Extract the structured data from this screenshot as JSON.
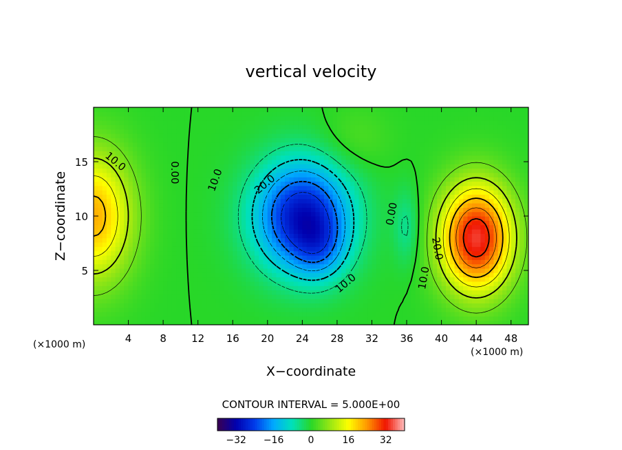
{
  "chart_data": {
    "type": "heatmap",
    "title": "vertical velocity",
    "xlabel": "X−coordinate",
    "ylabel": "Z−coordinate",
    "x_unit": "(×1000 m)",
    "y_unit": "(×1000 m)",
    "xlim": [
      0,
      50
    ],
    "ylim": [
      0,
      20
    ],
    "x_ticks": [
      "4",
      "8",
      "12",
      "16",
      "20",
      "24",
      "28",
      "32",
      "36",
      "40",
      "44",
      "48"
    ],
    "x_tick_values": [
      4,
      8,
      12,
      16,
      20,
      24,
      28,
      32,
      36,
      40,
      44,
      48
    ],
    "y_ticks": [
      "5",
      "10",
      "15"
    ],
    "y_tick_values": [
      5,
      10,
      15
    ],
    "contour_interval_text": "CONTOUR INTERVAL = 5.000E+00",
    "contour_labels": [
      {
        "text": "10.0",
        "x": 2.5,
        "y": 15.0,
        "angle": 40
      },
      {
        "text": "0.00",
        "x": 9.3,
        "y": 14.0,
        "angle": 90
      },
      {
        "text": "10.0",
        "x": 14.0,
        "y": 13.3,
        "angle": -70
      },
      {
        "text": "20.0",
        "x": 19.7,
        "y": 12.9,
        "angle": -40
      },
      {
        "text": "0.00",
        "x": 34.3,
        "y": 10.2,
        "angle": -80
      },
      {
        "text": "20.0",
        "x": 39.5,
        "y": 7.0,
        "angle": 80
      },
      {
        "text": "10.0",
        "x": 38.0,
        "y": 4.3,
        "angle": -80
      },
      {
        "text": "10.0",
        "x": 29.0,
        "y": 3.8,
        "angle": -40
      }
    ],
    "field_features": [
      {
        "x": 0,
        "y": 10,
        "value": 22,
        "sx": 4.5,
        "sy": 6
      },
      {
        "x": 24,
        "y": 10,
        "value": -30,
        "sx": 5.5,
        "sy": 5
      },
      {
        "x": 26,
        "y": 7,
        "value": -8,
        "sx": 3,
        "sy": 3
      },
      {
        "x": 44,
        "y": 8,
        "value": 34,
        "sx": 4.2,
        "sy": 5
      },
      {
        "x": 36,
        "y": 9,
        "value": -6,
        "sx": 1.5,
        "sy": 3.5
      },
      {
        "x": 30,
        "y": 17,
        "value": 3,
        "sx": 4,
        "sy": 3
      }
    ],
    "colorbar": {
      "ticks": [
        "−32",
        "−16",
        "0",
        "16",
        "32"
      ],
      "tick_values": [
        -32,
        -16,
        0,
        16,
        32
      ],
      "range": [
        -40,
        40
      ]
    }
  }
}
